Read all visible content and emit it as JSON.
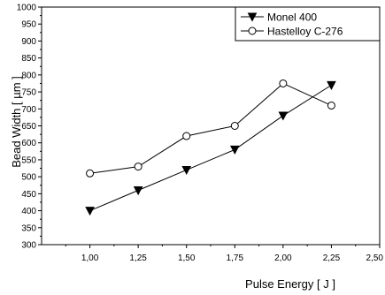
{
  "chart_data": {
    "type": "line",
    "xlabel": "Pulse Energy [ J ]",
    "ylabel": "Bead Width [ µm ]",
    "xlim": [
      0.75,
      2.5
    ],
    "ylim": [
      300,
      1000
    ],
    "x_ticks": [
      "1,00",
      "1,25",
      "1,50",
      "1,75",
      "2,00",
      "2,25",
      "2,50"
    ],
    "x_tick_values": [
      1.0,
      1.25,
      1.5,
      1.75,
      2.0,
      2.25,
      2.5
    ],
    "y_ticks": [
      "300",
      "350",
      "400",
      "450",
      "500",
      "550",
      "600",
      "650",
      "700",
      "750",
      "800",
      "850",
      "900",
      "950",
      "1000"
    ],
    "y_tick_values": [
      300,
      350,
      400,
      450,
      500,
      550,
      600,
      650,
      700,
      750,
      800,
      850,
      900,
      950,
      1000
    ],
    "grid": false,
    "legend_position": "top-right",
    "series": [
      {
        "name": "Monel 400",
        "marker": "filled-down-triangle",
        "color": "#000000",
        "x": [
          1.0,
          1.25,
          1.5,
          1.75,
          2.0,
          2.25
        ],
        "y": [
          400,
          460,
          520,
          580,
          680,
          770
        ]
      },
      {
        "name": "Hastelloy C-276",
        "marker": "open-circle",
        "color": "#000000",
        "x": [
          1.0,
          1.25,
          1.5,
          1.75,
          2.0,
          2.25
        ],
        "y": [
          510,
          530,
          620,
          650,
          775,
          710
        ]
      }
    ]
  }
}
